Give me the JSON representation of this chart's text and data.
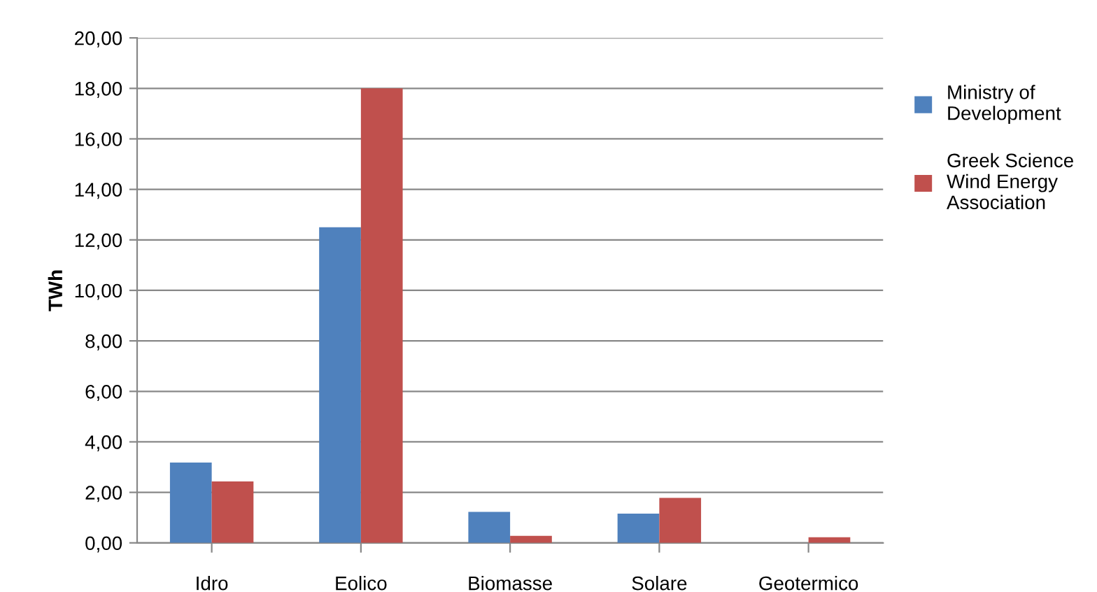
{
  "chart_data": {
    "type": "bar",
    "ylabel": "TWh",
    "categories": [
      "Idro",
      "Eolico",
      "Biomasse",
      "Solare",
      "Geotermico"
    ],
    "series": [
      {
        "name": "Ministry of Development",
        "color": "#4f81bd",
        "values": [
          3.18,
          12.5,
          1.23,
          1.16,
          0
        ]
      },
      {
        "name": "Greek Science Wind Energy Association",
        "color": "#c0504d",
        "values": [
          2.43,
          18.0,
          0.28,
          1.78,
          0.22
        ]
      }
    ],
    "ylim": [
      0,
      20
    ],
    "yticks": [
      {
        "value": 0,
        "label": "0,00"
      },
      {
        "value": 2,
        "label": "2,00"
      },
      {
        "value": 4,
        "label": "4,00"
      },
      {
        "value": 6,
        "label": "6,00"
      },
      {
        "value": 8,
        "label": "8,00"
      },
      {
        "value": 10,
        "label": "10,00"
      },
      {
        "value": 12,
        "label": "12,00"
      },
      {
        "value": 14,
        "label": "14,00"
      },
      {
        "value": 16,
        "label": "16,00"
      },
      {
        "value": 18,
        "label": "18,00"
      },
      {
        "value": 20,
        "label": "20,00"
      }
    ],
    "grid": "y",
    "legend": "right"
  }
}
